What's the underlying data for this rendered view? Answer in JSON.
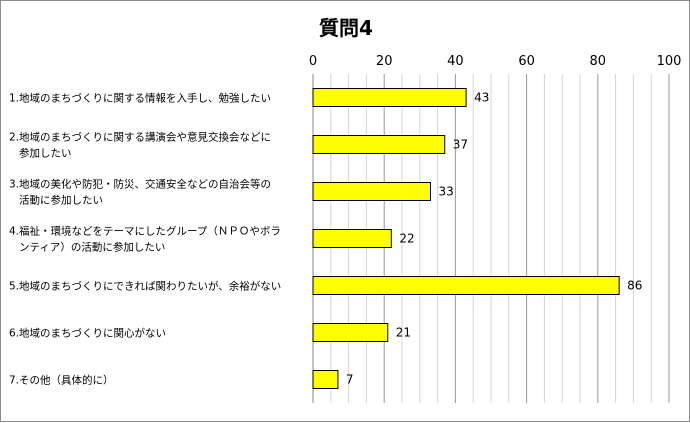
{
  "chart_data": {
    "type": "bar",
    "orientation": "horizontal",
    "title": "質問4",
    "xlim": [
      0,
      100
    ],
    "xticks": [
      0,
      20,
      40,
      60,
      80,
      100
    ],
    "grid": true,
    "bar_color": "#ffff00",
    "bar_edge_color": "#000000",
    "categories": [
      [
        "1.地域のまちづくりに関する情報を入手し、勉強したい"
      ],
      [
        "2.地域のまちづくりに関する講演会や意見交換会などに",
        "参加したい"
      ],
      [
        "3.地域の美化や防犯・防災、交通安全などの自治会等の",
        "活動に参加したい"
      ],
      [
        "4.福祉・環境などをテーマにしたグループ（ＮＰＯやボラ",
        "ンティア）の活動に参加したい"
      ],
      [
        "5.地域のまちづくりにできれば関わりたいが、余裕がない"
      ],
      [
        "6.地域のまちづくりに関心がない"
      ],
      [
        "7.その他（具体的に）"
      ]
    ],
    "values": [
      43,
      37,
      33,
      22,
      86,
      21,
      7
    ]
  }
}
